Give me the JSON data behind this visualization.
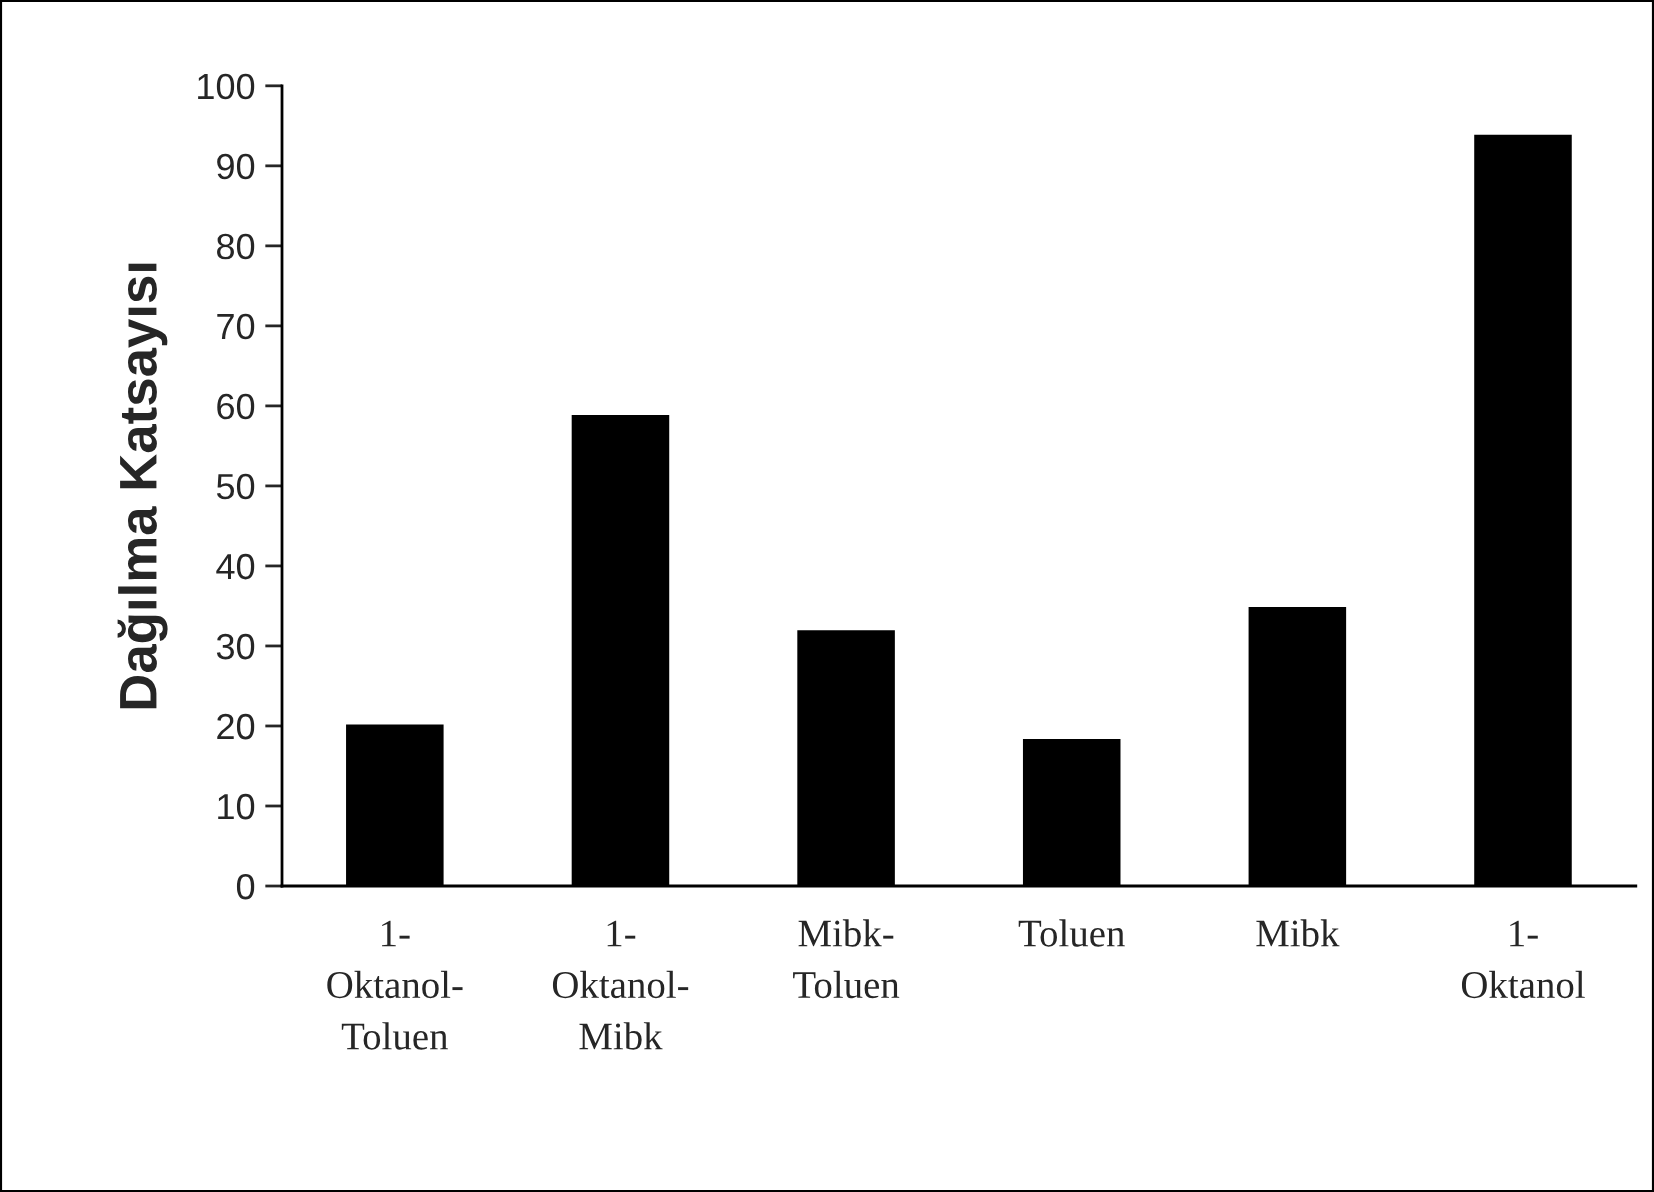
{
  "chart_data": {
    "type": "bar",
    "ylabel": "Dağılma Katsayısı",
    "categories": [
      "1-\nOktanol-\nToluen",
      "1-\nOktanol-\nMibk",
      "Mibk-\nToluen",
      "Toluen",
      "Mibk",
      "1-\nOktanol"
    ],
    "values": [
      20,
      58.7,
      31.8,
      18.2,
      34.7,
      93.7
    ],
    "color": "#000000",
    "ylim": [
      0,
      100
    ],
    "yticks": [
      0,
      10,
      20,
      30,
      40,
      50,
      60,
      70,
      80,
      90,
      100
    ],
    "grid": false,
    "legend": false
  }
}
